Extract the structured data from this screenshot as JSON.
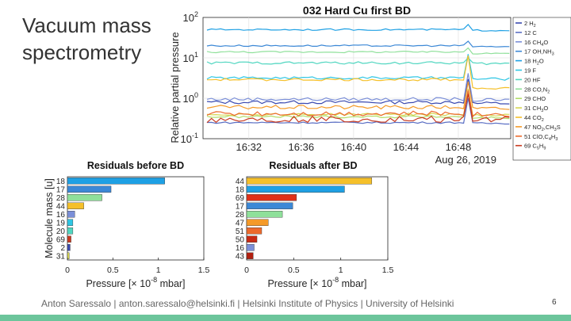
{
  "slide": {
    "title_line1": "Vacuum mass",
    "title_line2": "spectrometry",
    "footer": "Anton Saressalo | anton.saressalo@helsinki.fi | Helsinki Institute of Physics | University of Helsinki",
    "page_number": "6",
    "accent_color": "#6cc59b"
  },
  "chart_data": [
    {
      "type": "line",
      "title": "032 Hard Cu first BD",
      "ylabel": "Relative partial pressure",
      "yscale": "log",
      "ylim": [
        0.1,
        100
      ],
      "yticks": [
        {
          "base": "10",
          "exp": "2",
          "value": 100
        },
        {
          "base": "10",
          "exp": "1",
          "value": 10
        },
        {
          "base": "10",
          "exp": "0",
          "value": 1
        },
        {
          "base": "10",
          "exp": "-1",
          "value": 0.1
        }
      ],
      "xlim_minutes": [
        28.5,
        52
      ],
      "xticks": [
        {
          "label": "16:32",
          "minute": 32
        },
        {
          "label": "16:36",
          "minute": 36
        },
        {
          "label": "16:40",
          "minute": 40
        },
        {
          "label": "16:44",
          "minute": 44
        },
        {
          "label": "16:48",
          "minute": 48
        }
      ],
      "date_label": "Aug 26, 2019",
      "breakdown_minute": 49.0,
      "series": [
        {
          "mass": "2",
          "name": "H",
          "sub": "2",
          "color": "#3b4ab0",
          "before": 0.8,
          "after": 0.75,
          "noise": 0.04
        },
        {
          "mass": "12",
          "name": "C",
          "sub": "",
          "color": "#5b6fc4",
          "before": 0.25,
          "after": 0.24,
          "noise": 0.02
        },
        {
          "mass": "16",
          "name": "CH",
          "sub": "4",
          "name2": "O",
          "color": "#7b8fd8",
          "before": 0.95,
          "after": 0.9,
          "noise": 0.04
        },
        {
          "mass": "17",
          "name": "OH,NH",
          "sub": "3",
          "color": "#3c88d6",
          "before": 20,
          "after": 19,
          "noise": 0.02
        },
        {
          "mass": "18",
          "name": "H",
          "sub": "2",
          "name2": "O",
          "color": "#1ea0e4",
          "before": 50,
          "after": 48,
          "noise": 0.02
        },
        {
          "mass": "19",
          "name": "F",
          "sub": "",
          "color": "#2ec6e4",
          "before": 3.2,
          "after": 3.0,
          "noise": 0.03
        },
        {
          "mass": "20",
          "name": "HF",
          "sub": "",
          "color": "#50d6c0",
          "before": 7.5,
          "after": 7.2,
          "noise": 0.03
        },
        {
          "mass": "28",
          "name": "CO,N",
          "sub": "2",
          "color": "#8fe09a",
          "before": 14,
          "after": 13,
          "noise": 0.02
        },
        {
          "mass": "29",
          "name": "CHO",
          "sub": "",
          "color": "#b2dd6a",
          "before": 0.35,
          "after": 0.33,
          "noise": 0.03
        },
        {
          "mass": "31",
          "name": "CH",
          "sub": "3",
          "name2": "O",
          "color": "#d6d650",
          "before": 0.4,
          "after": 0.38,
          "noise": 0.03
        },
        {
          "mass": "44",
          "name": "CO",
          "sub": "2",
          "color": "#f5c02a",
          "before": 2.9,
          "after": 1.8,
          "noise": 0.03
        },
        {
          "mass": "47",
          "name": "NO",
          "sub": "2",
          "name2": ",CH",
          "sub2": "3",
          "name3": "S",
          "color": "#f59a28",
          "before": 0.6,
          "after": 0.55,
          "noise": 0.05
        },
        {
          "mass": "51",
          "name": "ClO,C",
          "sub": "4",
          "name2": "H",
          "sub2": "3",
          "color": "#ec6a2c",
          "before": 0.42,
          "after": 0.4,
          "noise": 0.06
        },
        {
          "mass": "69",
          "name": "C",
          "sub": "5",
          "name2": "H",
          "sub2": "9",
          "color": "#c83a20",
          "before": 0.3,
          "after": 0.3,
          "noise": 0.08
        }
      ]
    },
    {
      "type": "bar",
      "orientation": "horizontal",
      "title": "Residuals before BD",
      "ylabel": "Molecule mass [u]",
      "xlabel": "Pressure [× 10",
      "xlabel_exp": "-8",
      "xlabel_unit": "mbar]",
      "xlim": [
        0,
        1.5
      ],
      "xticks": [
        "0",
        "0.5",
        "1",
        "1.5"
      ],
      "categories": [
        "18",
        "17",
        "28",
        "44",
        "16",
        "19",
        "20",
        "69",
        "2",
        "31"
      ],
      "values": [
        1.07,
        0.48,
        0.38,
        0.18,
        0.08,
        0.06,
        0.06,
        0.04,
        0.03,
        0.02
      ],
      "colors": [
        "#1ea0e4",
        "#3c88d6",
        "#8fe09a",
        "#f5c02a",
        "#7b8fd8",
        "#2ec6e4",
        "#50d6c0",
        "#c83a20",
        "#3b4ab0",
        "#d6d650"
      ]
    },
    {
      "type": "bar",
      "orientation": "horizontal",
      "title": "Residuals after BD",
      "ylabel": "",
      "xlabel": "Pressure [× 10",
      "xlabel_exp": "-8",
      "xlabel_unit": "mbar]",
      "xlim": [
        0,
        1.5
      ],
      "xticks": [
        "0",
        "0.5",
        "1",
        "1.5"
      ],
      "categories": [
        "44",
        "18",
        "69",
        "17",
        "28",
        "47",
        "51",
        "50",
        "16",
        "43"
      ],
      "values": [
        1.33,
        1.04,
        0.53,
        0.49,
        0.38,
        0.23,
        0.16,
        0.11,
        0.08,
        0.07
      ],
      "colors": [
        "#f5c02a",
        "#1ea0e4",
        "#e03018",
        "#3c88d6",
        "#8fe09a",
        "#f59a28",
        "#ec6a2c",
        "#c82a14",
        "#7b8fd8",
        "#b22010"
      ]
    }
  ]
}
